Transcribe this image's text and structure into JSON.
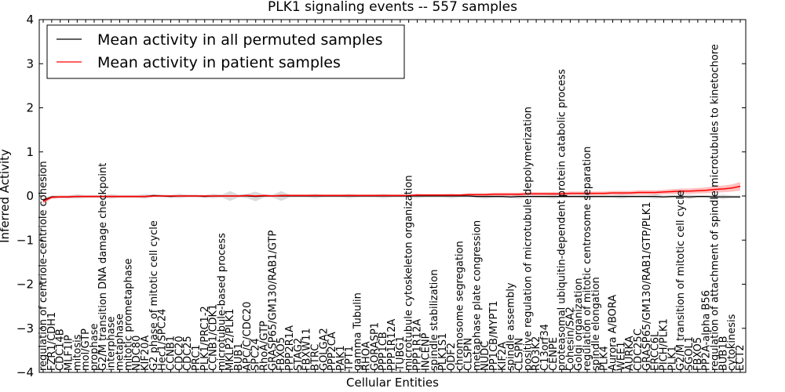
{
  "chart_data": {
    "type": "line",
    "title": "PLK1 signaling events -- 557 samples",
    "xlabel": "Cellular Entities",
    "ylabel": "Inferred Activity",
    "ylim": [
      -4,
      4
    ],
    "yticks": [
      -4,
      -3,
      -2,
      -1,
      0,
      1,
      2,
      3,
      4
    ],
    "legend": {
      "placement": "top-left",
      "entries": [
        {
          "label": "Mean activity in all permuted samples",
          "color": "#000000"
        },
        {
          "label": "Mean activity in patient samples",
          "color": "#ff0000"
        }
      ]
    },
    "categories": [
      "regulation of centriole-centriole cohesion",
      "FZR1/CDH1",
      "CDC14B",
      "MLF1IP",
      "mitosis",
      "mol/GTP",
      "prophase",
      "G2/M transition DNA damage checkpoint",
      "interphase",
      "metaphase",
      "mitotic prometaphase",
      "NDC80",
      "KIF20A",
      "G2 phase of mitotic cell cycle",
      "Hec1/SPC24",
      "CCNB1",
      "CDC20",
      "CDC25",
      "PRC1",
      "PLK1/PRC1-2",
      "CCNB1/CDK1",
      "microtubule-based process",
      "MKLP2/PLK1",
      "BUB1",
      "APC/C/CDC20",
      "SPC24",
      "RhoA/GTP",
      "GRASP65/GM130/RAB1/GTP",
      "FBXO5",
      "PPP2R1A",
      "STAG2",
      "FBXW11",
      "BTRC",
      "GOLGA2",
      "PPP2CA",
      "PAK1",
      "TPT1",
      "gamma Tubulin",
      "RHOA",
      "GORASP1",
      "PPP1CB",
      "PPP1R12A",
      "TUBG1",
      "microtubule cytoskeleton organization",
      "PPP1R12A",
      "INCENP",
      "spindle stabilization",
      "PLK1S1",
      "ODF2",
      "chromosome segregation",
      "CLSPN",
      "metaphase plate congression",
      "NUDC",
      "PP1CB/MYPT1",
      "KIF2A",
      "spindle assembly",
      "CLSPN",
      "positive regulation of microtubule depolymerization",
      "RO3K2",
      "C13orf34",
      "CENPE",
      "proteasomal ubiquitin-dependent protein catabolic process",
      "Cohesin/SA2",
      "Golgi organization",
      "regulation of mitotic centrosome separation",
      "spindle elongation",
      "PLK4",
      "Aurora A/BORA",
      "WEE1",
      "AURKA",
      "CDC25C",
      "GRASP65/GM130/RAB1/GTP/PLK1",
      "ERCC6L",
      "PICH/PLK1",
      "PLK1",
      "G2/M transition of mitotic cell cycle",
      "SGOL1",
      "FBXO5",
      "PP2A-alpha B56",
      "regulation of attachment of spindle microtubules to kinetochore",
      "BUB1B",
      "cytokinesis",
      "ECT2"
    ],
    "series": [
      {
        "name": "Mean activity in all permuted samples",
        "color": "#000000",
        "values": [
          -0.1,
          -0.02,
          -0.02,
          -0.02,
          -0.01,
          -0.01,
          -0.01,
          -0.01,
          -0.01,
          -0.01,
          -0.01,
          -0.01,
          -0.01,
          0.01,
          0.0,
          -0.01,
          0.0,
          0.0,
          0.0,
          -0.01,
          0.0,
          0.0,
          0.0,
          0.0,
          0.0,
          -0.01,
          0.0,
          0.0,
          0.0,
          0.0,
          0.0,
          0.0,
          0.0,
          0.0,
          0.0,
          0.0,
          0.0,
          0.0,
          0.0,
          0.0,
          0.0,
          0.0,
          0.0,
          0.0,
          0.0,
          0.0,
          0.0,
          0.0,
          0.0,
          0.0,
          0.0,
          -0.01,
          -0.01,
          -0.01,
          -0.01,
          -0.02,
          -0.01,
          -0.01,
          -0.01,
          -0.01,
          -0.01,
          -0.01,
          -0.01,
          -0.01,
          -0.01,
          -0.01,
          -0.01,
          -0.01,
          -0.01,
          -0.01,
          -0.01,
          -0.01,
          -0.01,
          -0.02,
          -0.01,
          -0.01,
          -0.02,
          -0.01,
          -0.01,
          -0.02,
          -0.02,
          -0.02,
          -0.02
        ]
      },
      {
        "name": "Mean activity in patient samples",
        "color": "#ff0000",
        "values": [
          -0.12,
          -0.03,
          -0.02,
          -0.02,
          -0.01,
          -0.01,
          -0.01,
          -0.01,
          -0.01,
          -0.01,
          -0.01,
          -0.01,
          -0.01,
          0.0,
          0.0,
          0.0,
          0.0,
          0.0,
          0.0,
          0.0,
          0.0,
          0.0,
          0.0,
          0.0,
          0.01,
          0.0,
          0.01,
          0.0,
          0.01,
          0.01,
          0.01,
          0.01,
          0.01,
          0.01,
          0.01,
          0.01,
          0.01,
          0.01,
          0.01,
          0.01,
          0.01,
          0.01,
          0.01,
          0.01,
          0.02,
          0.02,
          0.02,
          0.02,
          0.02,
          0.02,
          0.03,
          0.03,
          0.03,
          0.04,
          0.04,
          0.04,
          0.04,
          0.05,
          0.05,
          0.05,
          0.05,
          0.05,
          0.06,
          0.06,
          0.06,
          0.06,
          0.06,
          0.07,
          0.07,
          0.07,
          0.08,
          0.08,
          0.08,
          0.09,
          0.1,
          0.11,
          0.11,
          0.12,
          0.13,
          0.15,
          0.16,
          0.18,
          0.22
        ]
      }
    ]
  }
}
